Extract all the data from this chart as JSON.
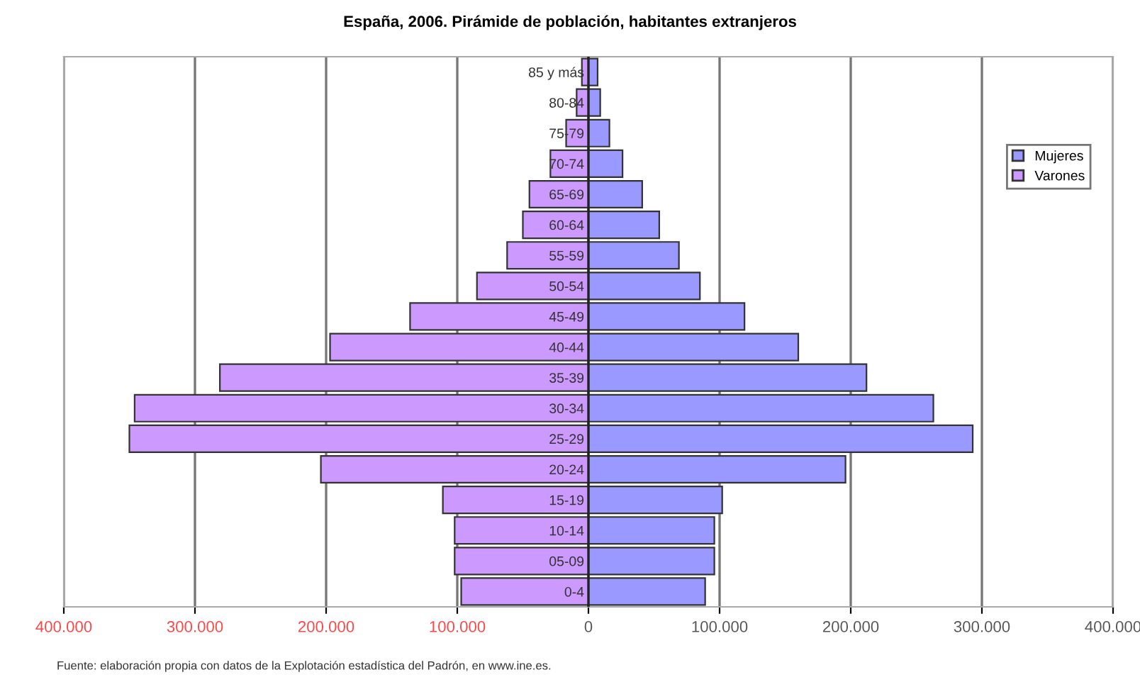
{
  "chart_data": {
    "type": "bar",
    "orientation": "horizontal",
    "title": "España, 2006. Pirámide de población, habitantes extranjeros",
    "categories": [
      "85 y más",
      "80-84",
      "75-79",
      "70-74",
      "65-69",
      "60-64",
      "55-59",
      "50-54",
      "45-49",
      "40-44",
      "35-39",
      "30-34",
      "25-29",
      "20-24",
      "15-19",
      "10-14",
      "05-09",
      "0-4"
    ],
    "series": [
      {
        "name": "Mujeres",
        "color": "#9999ff",
        "values": [
          7000,
          9000,
          16000,
          26000,
          41000,
          54000,
          69000,
          85000,
          119000,
          160000,
          212000,
          263000,
          293000,
          196000,
          102000,
          96000,
          96000,
          89000
        ]
      },
      {
        "name": "Varones",
        "color": "#cc99ff",
        "values": [
          -5000,
          -9000,
          -17000,
          -29000,
          -45000,
          -50000,
          -62000,
          -85000,
          -136000,
          -197000,
          -281000,
          -346000,
          -350000,
          -204000,
          -111000,
          -102000,
          -102000,
          -97000
        ]
      }
    ],
    "xlim": [
      -400000,
      400000
    ],
    "xticks": [
      {
        "value": -400000,
        "label": "400.000"
      },
      {
        "value": -300000,
        "label": "300.000"
      },
      {
        "value": -200000,
        "label": "200.000"
      },
      {
        "value": -100000,
        "label": "100.000"
      },
      0,
      {
        "value": 100000,
        "label": "100.000"
      },
      {
        "value": 200000,
        "label": "200.000"
      },
      {
        "value": 300000,
        "label": "300.000"
      },
      {
        "value": 400000,
        "label": "400.000"
      }
    ],
    "stacked": true,
    "grid": "x",
    "legend": "right",
    "annotations": [
      "Fuente: elaboración propia con datos de la Explotación estadística del Padrón, en www.ine.es."
    ]
  }
}
